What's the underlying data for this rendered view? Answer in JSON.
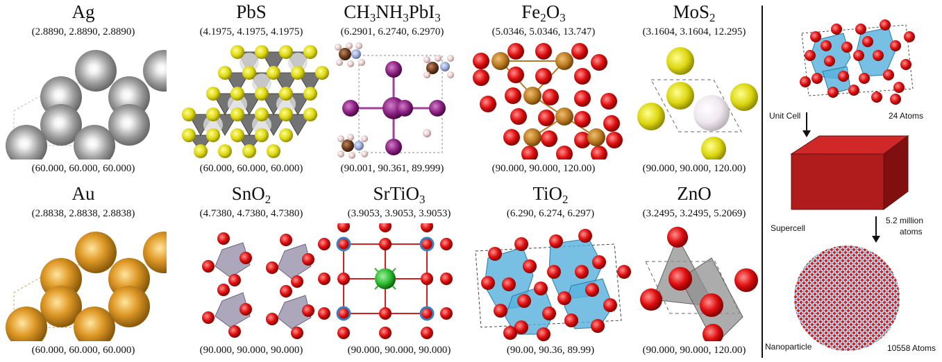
{
  "panels": [
    {
      "id": "ag",
      "title": [
        "Ag"
      ],
      "lattice": "(2.8890, 2.8890, 2.8890)",
      "angles": "(60.000, 60.000, 60.000)"
    },
    {
      "id": "pbs",
      "title": [
        "PbS"
      ],
      "lattice": "(4.1975, 4.1975, 4.1975)",
      "angles": "(60.000, 60.000, 60.000)"
    },
    {
      "id": "mapbi3",
      "title": [
        "CH",
        "3",
        "NH",
        "3",
        "PbI",
        "3"
      ],
      "lattice": "(6.2901, 6.2740, 6.2970)",
      "angles": "(90.001, 90.361, 89.999)"
    },
    {
      "id": "fe2o3",
      "title": [
        "Fe",
        "2",
        "O",
        "3"
      ],
      "lattice": "(5.0346, 5.0346, 13.747)",
      "angles": "(90.000, 90.000, 120.00)"
    },
    {
      "id": "mos2",
      "title": [
        "MoS",
        "2"
      ],
      "lattice": "(3.1604, 3.1604, 12.295)",
      "angles": "(90.000, 90.000, 120.00)"
    },
    {
      "id": "au",
      "title": [
        "Au"
      ],
      "lattice": "(2.8838, 2.8838, 2.8838)",
      "angles": "(60.000, 60.000, 60.000)"
    },
    {
      "id": "sno2",
      "title": [
        "SnO",
        "2"
      ],
      "lattice": "(4.7380, 4.7380, 4.7380)",
      "angles": "(90.000, 90.000, 90.000)"
    },
    {
      "id": "srtio3",
      "title": [
        "SrTiO",
        "3"
      ],
      "lattice": "(3.9053, 3.9053, 3.9053)",
      "angles": "(90.000, 90.000, 90.000)"
    },
    {
      "id": "tio2",
      "title": [
        "TiO",
        "2"
      ],
      "lattice": "(6.290, 6.274, 6.297)",
      "angles": "(90.00, 90.36, 89.99)"
    },
    {
      "id": "zno",
      "title": [
        "ZnO"
      ],
      "lattice": "(3.2495, 3.2495, 5.2069)",
      "angles": "(90.000, 90.000, 120.00)"
    }
  ],
  "workflow": {
    "unit_cell_label": "Unit Cell",
    "unit_cell_atoms": "24 Atoms",
    "supercell_label": "Supercell",
    "supercell_atoms_line1": "5.2 million",
    "supercell_atoms_line2": "atoms",
    "nanoparticle_label": "Nanoparticle",
    "nanoparticle_atoms": "10558 Atoms"
  },
  "colors": {
    "silver": "#9a9a9a",
    "gold": "#d9901c",
    "sulfur": "#e0dc10",
    "lead": "#555555",
    "oxygen": "#e01010",
    "iron": "#b87820",
    "tin": "#8a82a0",
    "titanium_poly": "#56b0dc",
    "strontium": "#2ab82a",
    "iodine": "#8a1e80",
    "carbon": "#6a3a1e",
    "nitrogen": "#9aa8d8",
    "hydrogen": "#e8c8c8",
    "molybdenum": "#e8e0e8",
    "zinc": "#909090",
    "supercell": "#a01818"
  }
}
